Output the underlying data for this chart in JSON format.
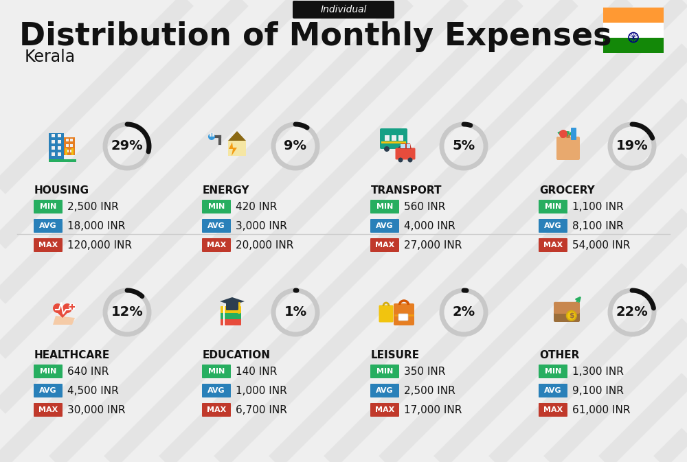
{
  "title": "Distribution of Monthly Expenses",
  "subtitle": "Kerala",
  "tag": "Individual",
  "bg_color": "#efefef",
  "flag_colors": [
    "#FF9933",
    "#FFFFFF",
    "#138808"
  ],
  "categories": [
    {
      "name": "HOUSING",
      "pct": 29,
      "min": "2,500 INR",
      "avg": "18,000 INR",
      "max": "120,000 INR",
      "col": 0,
      "row": 0
    },
    {
      "name": "ENERGY",
      "pct": 9,
      "min": "420 INR",
      "avg": "3,000 INR",
      "max": "20,000 INR",
      "col": 1,
      "row": 0
    },
    {
      "name": "TRANSPORT",
      "pct": 5,
      "min": "560 INR",
      "avg": "4,000 INR",
      "max": "27,000 INR",
      "col": 2,
      "row": 0
    },
    {
      "name": "GROCERY",
      "pct": 19,
      "min": "1,100 INR",
      "avg": "8,100 INR",
      "max": "54,000 INR",
      "col": 3,
      "row": 0
    },
    {
      "name": "HEALTHCARE",
      "pct": 12,
      "min": "640 INR",
      "avg": "4,500 INR",
      "max": "30,000 INR",
      "col": 0,
      "row": 1
    },
    {
      "name": "EDUCATION",
      "pct": 1,
      "min": "140 INR",
      "avg": "1,000 INR",
      "max": "6,700 INR",
      "col": 1,
      "row": 1
    },
    {
      "name": "LEISURE",
      "pct": 2,
      "min": "350 INR",
      "avg": "2,500 INR",
      "max": "17,000 INR",
      "col": 2,
      "row": 1
    },
    {
      "name": "OTHER",
      "pct": 22,
      "min": "1,300 INR",
      "avg": "9,100 INR",
      "max": "61,000 INR",
      "col": 3,
      "row": 1
    }
  ],
  "min_color": "#27ae60",
  "avg_color": "#2980b9",
  "max_color": "#c0392b",
  "text_color": "#111111",
  "circle_bg": "#c8c8c8",
  "circle_fg": "#111111"
}
